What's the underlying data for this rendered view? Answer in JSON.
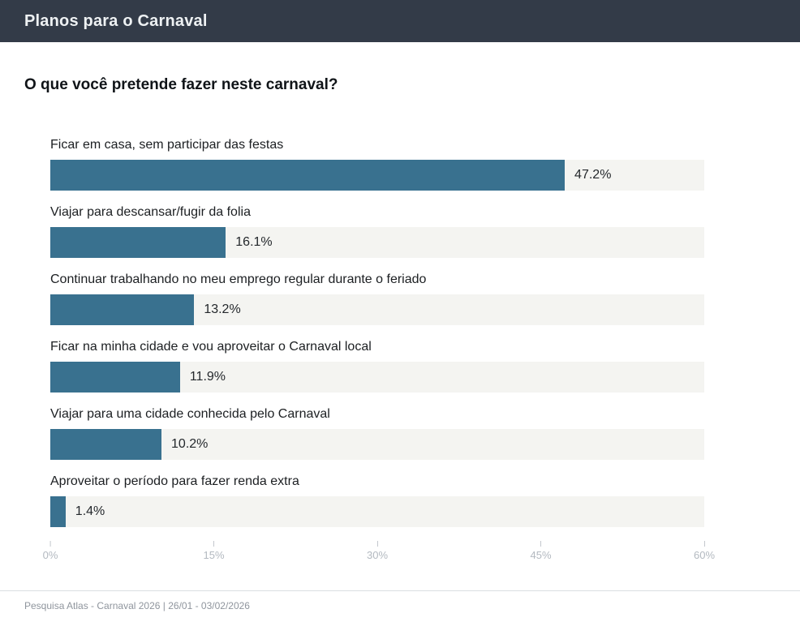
{
  "header": {
    "title": "Planos para o Carnaval",
    "bg_color": "#333b48"
  },
  "question": "O que você pretende fazer neste carnaval?",
  "chart_data": {
    "type": "bar",
    "orientation": "horizontal",
    "title": "O que você pretende fazer neste carnaval?",
    "categories": [
      "Ficar em casa, sem participar das festas",
      "Viajar para descansar/fugir da folia",
      "Continuar trabalhando no meu emprego regular durante o feriado",
      "Ficar na minha cidade e vou aproveitar o Carnaval local",
      "Viajar para uma cidade conhecida pelo Carnaval",
      "Aproveitar o período para fazer renda extra"
    ],
    "values": [
      47.2,
      16.1,
      13.2,
      11.9,
      10.2,
      1.4
    ],
    "value_labels": [
      "47.2%",
      "16.1%",
      "13.2%",
      "11.9%",
      "10.2%",
      "1.4%"
    ],
    "xlabel": "",
    "ylabel": "",
    "xlim": [
      0,
      60
    ],
    "x_tick_labels": [
      "0%",
      "15%",
      "30%",
      "45%",
      "60%"
    ],
    "x_tick_positions_pct": [
      0,
      25,
      50,
      75,
      100
    ],
    "grid": false,
    "legend": false,
    "bar_color": "#39718f",
    "track_color": "#f4f4f1"
  },
  "footer": {
    "source": "Pesquisa Atlas - Carnaval 2026 | 26/01 - 03/02/2026"
  }
}
